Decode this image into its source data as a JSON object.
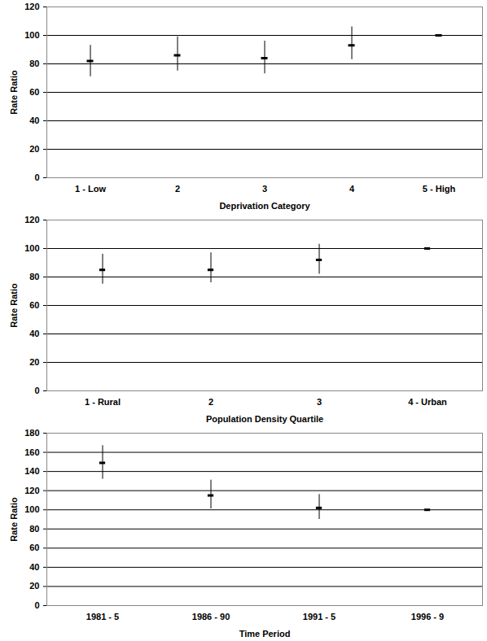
{
  "chart_data": [
    {
      "type": "errorbar",
      "x_label": "Deprivation Category",
      "y_label": "Rate Ratio",
      "categories": [
        "1 - Low",
        "2",
        "3",
        "4",
        "5 - High"
      ],
      "values": [
        82,
        86,
        84,
        93,
        100
      ],
      "lower": [
        71,
        75,
        73,
        83,
        null
      ],
      "upper": [
        93,
        99,
        96,
        106,
        null
      ],
      "color": "#000000",
      "ylim": [
        0,
        120
      ],
      "yticks": [
        0,
        20,
        40,
        60,
        80,
        100,
        120
      ],
      "grid": true
    },
    {
      "type": "errorbar",
      "x_label": "Population Density Quartile",
      "y_label": "Rate Ratio",
      "categories": [
        "1 - Rural",
        "2",
        "3",
        "4 - Urban"
      ],
      "values": [
        85,
        85,
        92,
        100
      ],
      "lower": [
        75,
        76,
        82,
        null
      ],
      "upper": [
        96,
        97,
        103,
        null
      ],
      "color": "#000000",
      "ylim": [
        0,
        120
      ],
      "yticks": [
        0,
        20,
        40,
        60,
        80,
        100,
        120
      ],
      "grid": true
    },
    {
      "type": "errorbar",
      "x_label": "Time Period",
      "y_label": "Rate Ratio",
      "categories": [
        "1981 - 5",
        "1986 - 90",
        "1991 - 5",
        "1996 - 9"
      ],
      "values": [
        149,
        115,
        102,
        100
      ],
      "lower": [
        132,
        101,
        90,
        null
      ],
      "upper": [
        167,
        131,
        116,
        null
      ],
      "color": "#000000",
      "ylim": [
        0,
        180
      ],
      "yticks": [
        0,
        20,
        40,
        60,
        80,
        100,
        120,
        140,
        160,
        180
      ],
      "grid": true
    }
  ]
}
